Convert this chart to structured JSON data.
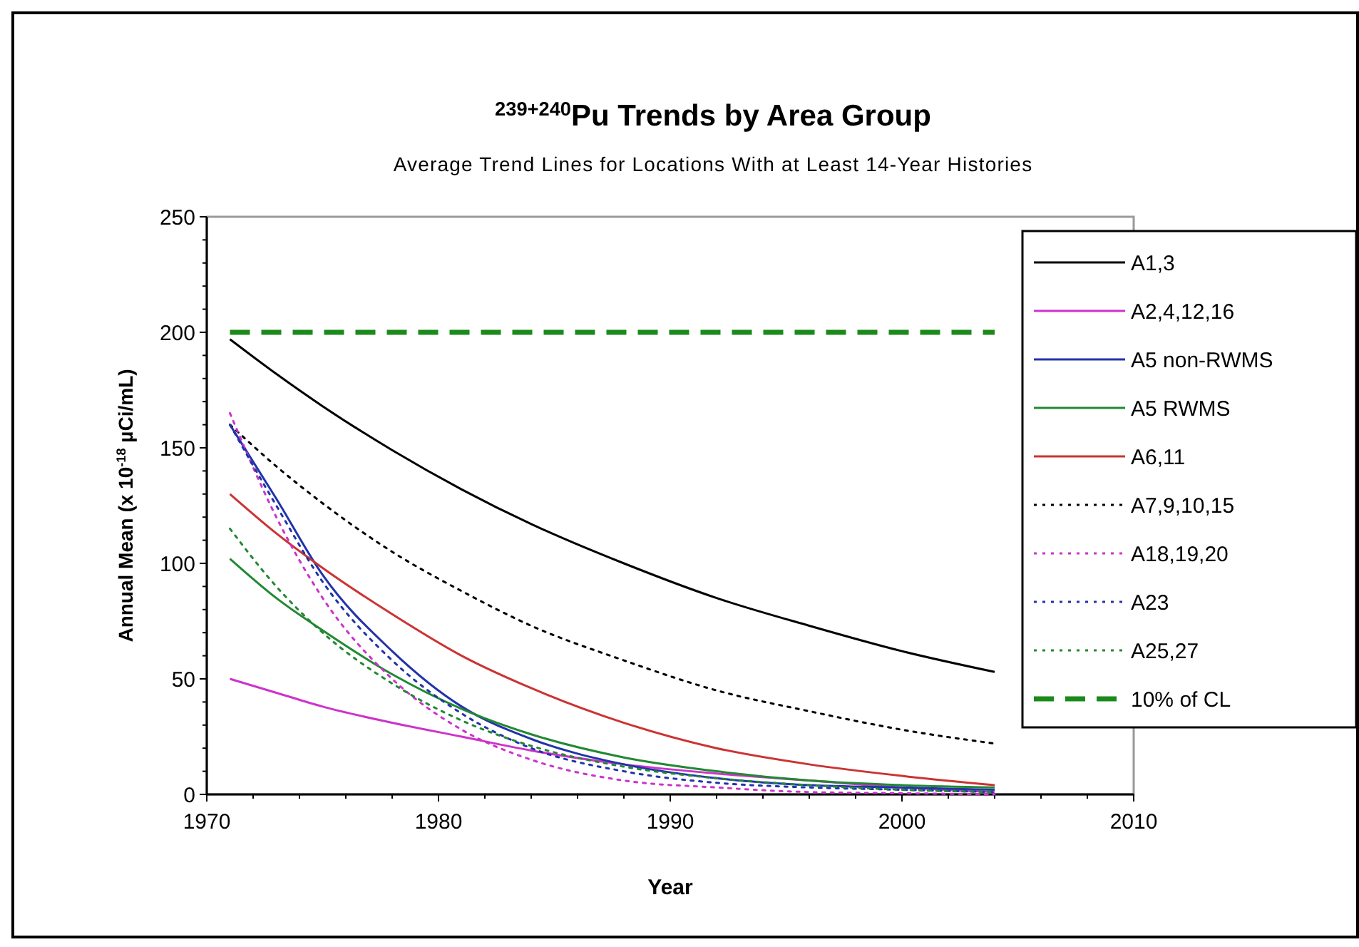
{
  "chart_data": {
    "type": "line",
    "title": "$^{239+240}$Pu Trends by Area Group",
    "subtitle": "Average Trend Lines for Locations With at Least 14-Year Histories",
    "xlabel": "Year",
    "ylabel": "Annual Mean (x 10$^{-18}$ µCi/mL)",
    "x": [
      1971,
      1973,
      1975,
      1978,
      1981,
      1984,
      1988,
      1992,
      1996,
      2000,
      2004
    ],
    "xlim": [
      1970,
      2010
    ],
    "xticks": [
      1970,
      1980,
      1990,
      2000,
      2010
    ],
    "ylim": [
      0,
      250
    ],
    "yticks": [
      0,
      50,
      100,
      150,
      200,
      250
    ],
    "grid": false,
    "legend": "right",
    "marker": "none",
    "series": [
      {
        "name": "A1,3",
        "color": "#000000",
        "line_style": "solid",
        "values": [
          197,
          182,
          168,
          149,
          132,
          117,
          100,
          85,
          73,
          62,
          53
        ]
      },
      {
        "name": "A2,4,12,16",
        "color": "#cc33cc",
        "line_style": "solid",
        "values": [
          50,
          44,
          38,
          31,
          25,
          19,
          13,
          9,
          6,
          3,
          1
        ]
      },
      {
        "name": "A5 non-RWMS",
        "color": "#2233aa",
        "line_style": "solid",
        "values": [
          160,
          128,
          95,
          62,
          38,
          24,
          13,
          7,
          4,
          3,
          2
        ]
      },
      {
        "name": "A5 RWMS",
        "color": "#228833",
        "line_style": "solid",
        "values": [
          102,
          85,
          71,
          52,
          37,
          26,
          16,
          10,
          6,
          4,
          3
        ]
      },
      {
        "name": "A6,11",
        "color": "#cc3333",
        "line_style": "solid",
        "values": [
          130,
          113,
          98,
          78,
          60,
          46,
          31,
          20,
          13,
          8,
          4
        ]
      },
      {
        "name": "A7,9,10,15",
        "color": "#000000",
        "line_style": "dotted",
        "values": [
          160,
          142,
          126,
          105,
          88,
          73,
          58,
          45,
          36,
          28,
          22
        ]
      },
      {
        "name": "A18,19,20",
        "color": "#cc33cc",
        "line_style": "dotted",
        "values": [
          165,
          120,
          85,
          50,
          28,
          15,
          6,
          3,
          1,
          0.5,
          0
        ]
      },
      {
        "name": "A23",
        "color": "#2233aa",
        "line_style": "dotted",
        "values": [
          160,
          125,
          92,
          58,
          35,
          20,
          10,
          5,
          3,
          2,
          1
        ]
      },
      {
        "name": "A25,27",
        "color": "#228833",
        "line_style": "dotted",
        "values": [
          115,
          90,
          70,
          48,
          32,
          21,
          12,
          7,
          4,
          2,
          1
        ]
      },
      {
        "name": "10% of CL",
        "color": "#1a8a1a",
        "line_style": "dashed",
        "x": [
          1971,
          2004
        ],
        "values": [
          200,
          200
        ]
      }
    ]
  }
}
